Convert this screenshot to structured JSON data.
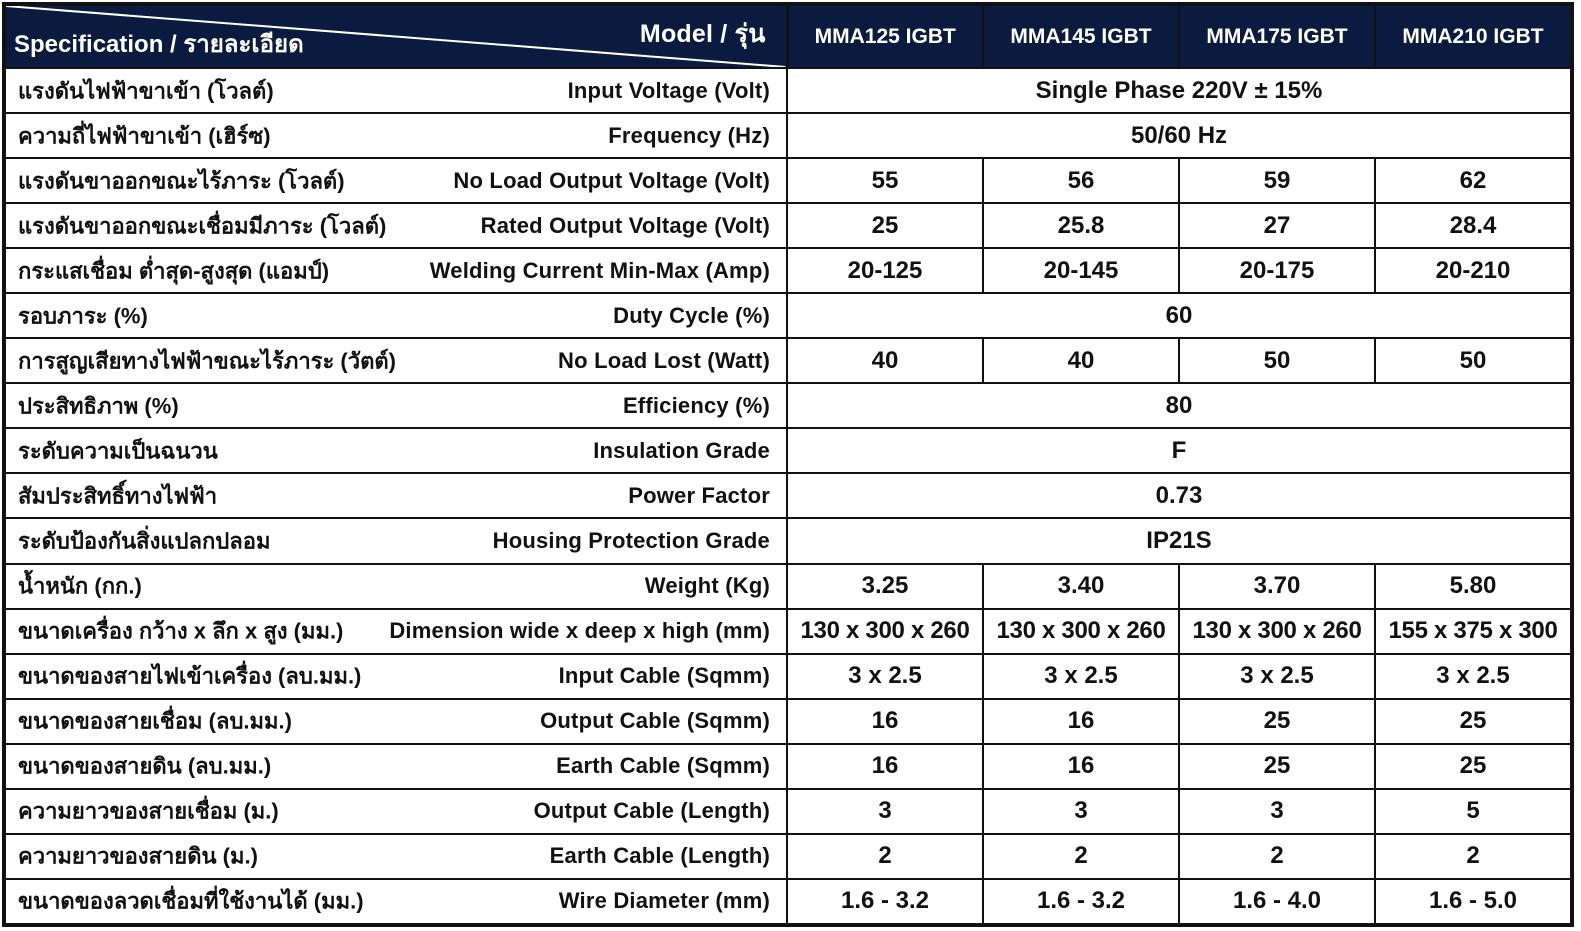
{
  "header": {
    "model_label": "Model / รุ่น",
    "spec_label": "Specification / รายละเอียด",
    "models": [
      "MMA125 IGBT",
      "MMA145 IGBT",
      "MMA175 IGBT",
      "MMA210 IGBT"
    ]
  },
  "rows": [
    {
      "th": "แรงดันไฟฟ้าขาเข้า (โวลต์)",
      "en": "Input Voltage (Volt)",
      "merged": "Single Phase 220V ± 15%"
    },
    {
      "th": "ความถี่ไฟฟ้าขาเข้า (เฮิร์ซ)",
      "en": "Frequency (Hz)",
      "merged": "50/60 Hz"
    },
    {
      "th": "แรงดันขาออกขณะไร้ภาระ (โวลต์)",
      "en": "No Load Output Voltage (Volt)",
      "values": [
        "55",
        "56",
        "59",
        "62"
      ]
    },
    {
      "th": "แรงดันขาออกขณะเชื่อมมีภาระ (โวลต์)",
      "en": "Rated Output Voltage (Volt)",
      "values": [
        "25",
        "25.8",
        "27",
        "28.4"
      ]
    },
    {
      "th": "กระแสเชื่อม ต่ำสุด-สูงสุด (แอมป์)",
      "en": "Welding Current Min-Max (Amp)",
      "values": [
        "20-125",
        "20-145",
        "20-175",
        "20-210"
      ]
    },
    {
      "th": "รอบภาระ (%)",
      "en": "Duty Cycle (%)",
      "merged": "60"
    },
    {
      "th": "การสูญเสียทางไฟฟ้าขณะไร้ภาระ (วัตต์)",
      "en": "No Load Lost (Watt)",
      "values": [
        "40",
        "40",
        "50",
        "50"
      ]
    },
    {
      "th": "ประสิทธิภาพ (%)",
      "en": "Efficiency (%)",
      "merged": "80"
    },
    {
      "th": "ระดับความเป็นฉนวน",
      "en": "Insulation Grade",
      "merged": "F"
    },
    {
      "th": "สัมประสิทธิ์ทางไฟฟ้า",
      "en": "Power Factor",
      "merged": "0.73"
    },
    {
      "th": "ระดับป้องกันสิ่งแปลกปลอม",
      "en": "Housing Protection Grade",
      "merged": "IP21S"
    },
    {
      "th": "น้ำหนัก (กก.)",
      "en": "Weight (Kg)",
      "values": [
        "3.25",
        "3.40",
        "3.70",
        "5.80"
      ]
    },
    {
      "th": "ขนาดเครื่อง กว้าง x ลึก x สูง (มม.)",
      "en": "Dimension wide x deep x high (mm)",
      "values": [
        "130 x 300 x 260",
        "130 x 300 x 260",
        "130 x 300 x 260",
        "155 x 375 x 300"
      ],
      "dim": true
    },
    {
      "th": "ขนาดของสายไฟเข้าเครื่อง (ลบ.มม.)",
      "en": "Input Cable (Sqmm)",
      "values": [
        "3 x 2.5",
        "3 x 2.5",
        "3 x 2.5",
        "3 x 2.5"
      ]
    },
    {
      "th": "ขนาดของสายเชื่อม (ลบ.มม.)",
      "en": "Output Cable (Sqmm)",
      "values": [
        "16",
        "16",
        "25",
        "25"
      ]
    },
    {
      "th": "ขนาดของสายดิน (ลบ.มม.)",
      "en": "Earth Cable (Sqmm)",
      "values": [
        "16",
        "16",
        "25",
        "25"
      ]
    },
    {
      "th": "ความยาวของสายเชื่อม (ม.)",
      "en": "Output Cable (Length)",
      "values": [
        "3",
        "3",
        "3",
        "5"
      ]
    },
    {
      "th": "ความยาวของสายดิน (ม.)",
      "en": "Earth Cable (Length)",
      "values": [
        "2",
        "2",
        "2",
        "2"
      ]
    },
    {
      "th": "ขนาดของลวดเชื่อมที่ใช้งานได้ (มม.)",
      "en": "Wire Diameter (mm)",
      "values": [
        "1.6 - 3.2",
        "1.6 - 3.2",
        "1.6 - 4.0",
        "1.6 - 5.0"
      ]
    }
  ],
  "colors": {
    "header_bg": "#0b1b3f",
    "header_text": "#ffffff",
    "border": "#111111"
  }
}
